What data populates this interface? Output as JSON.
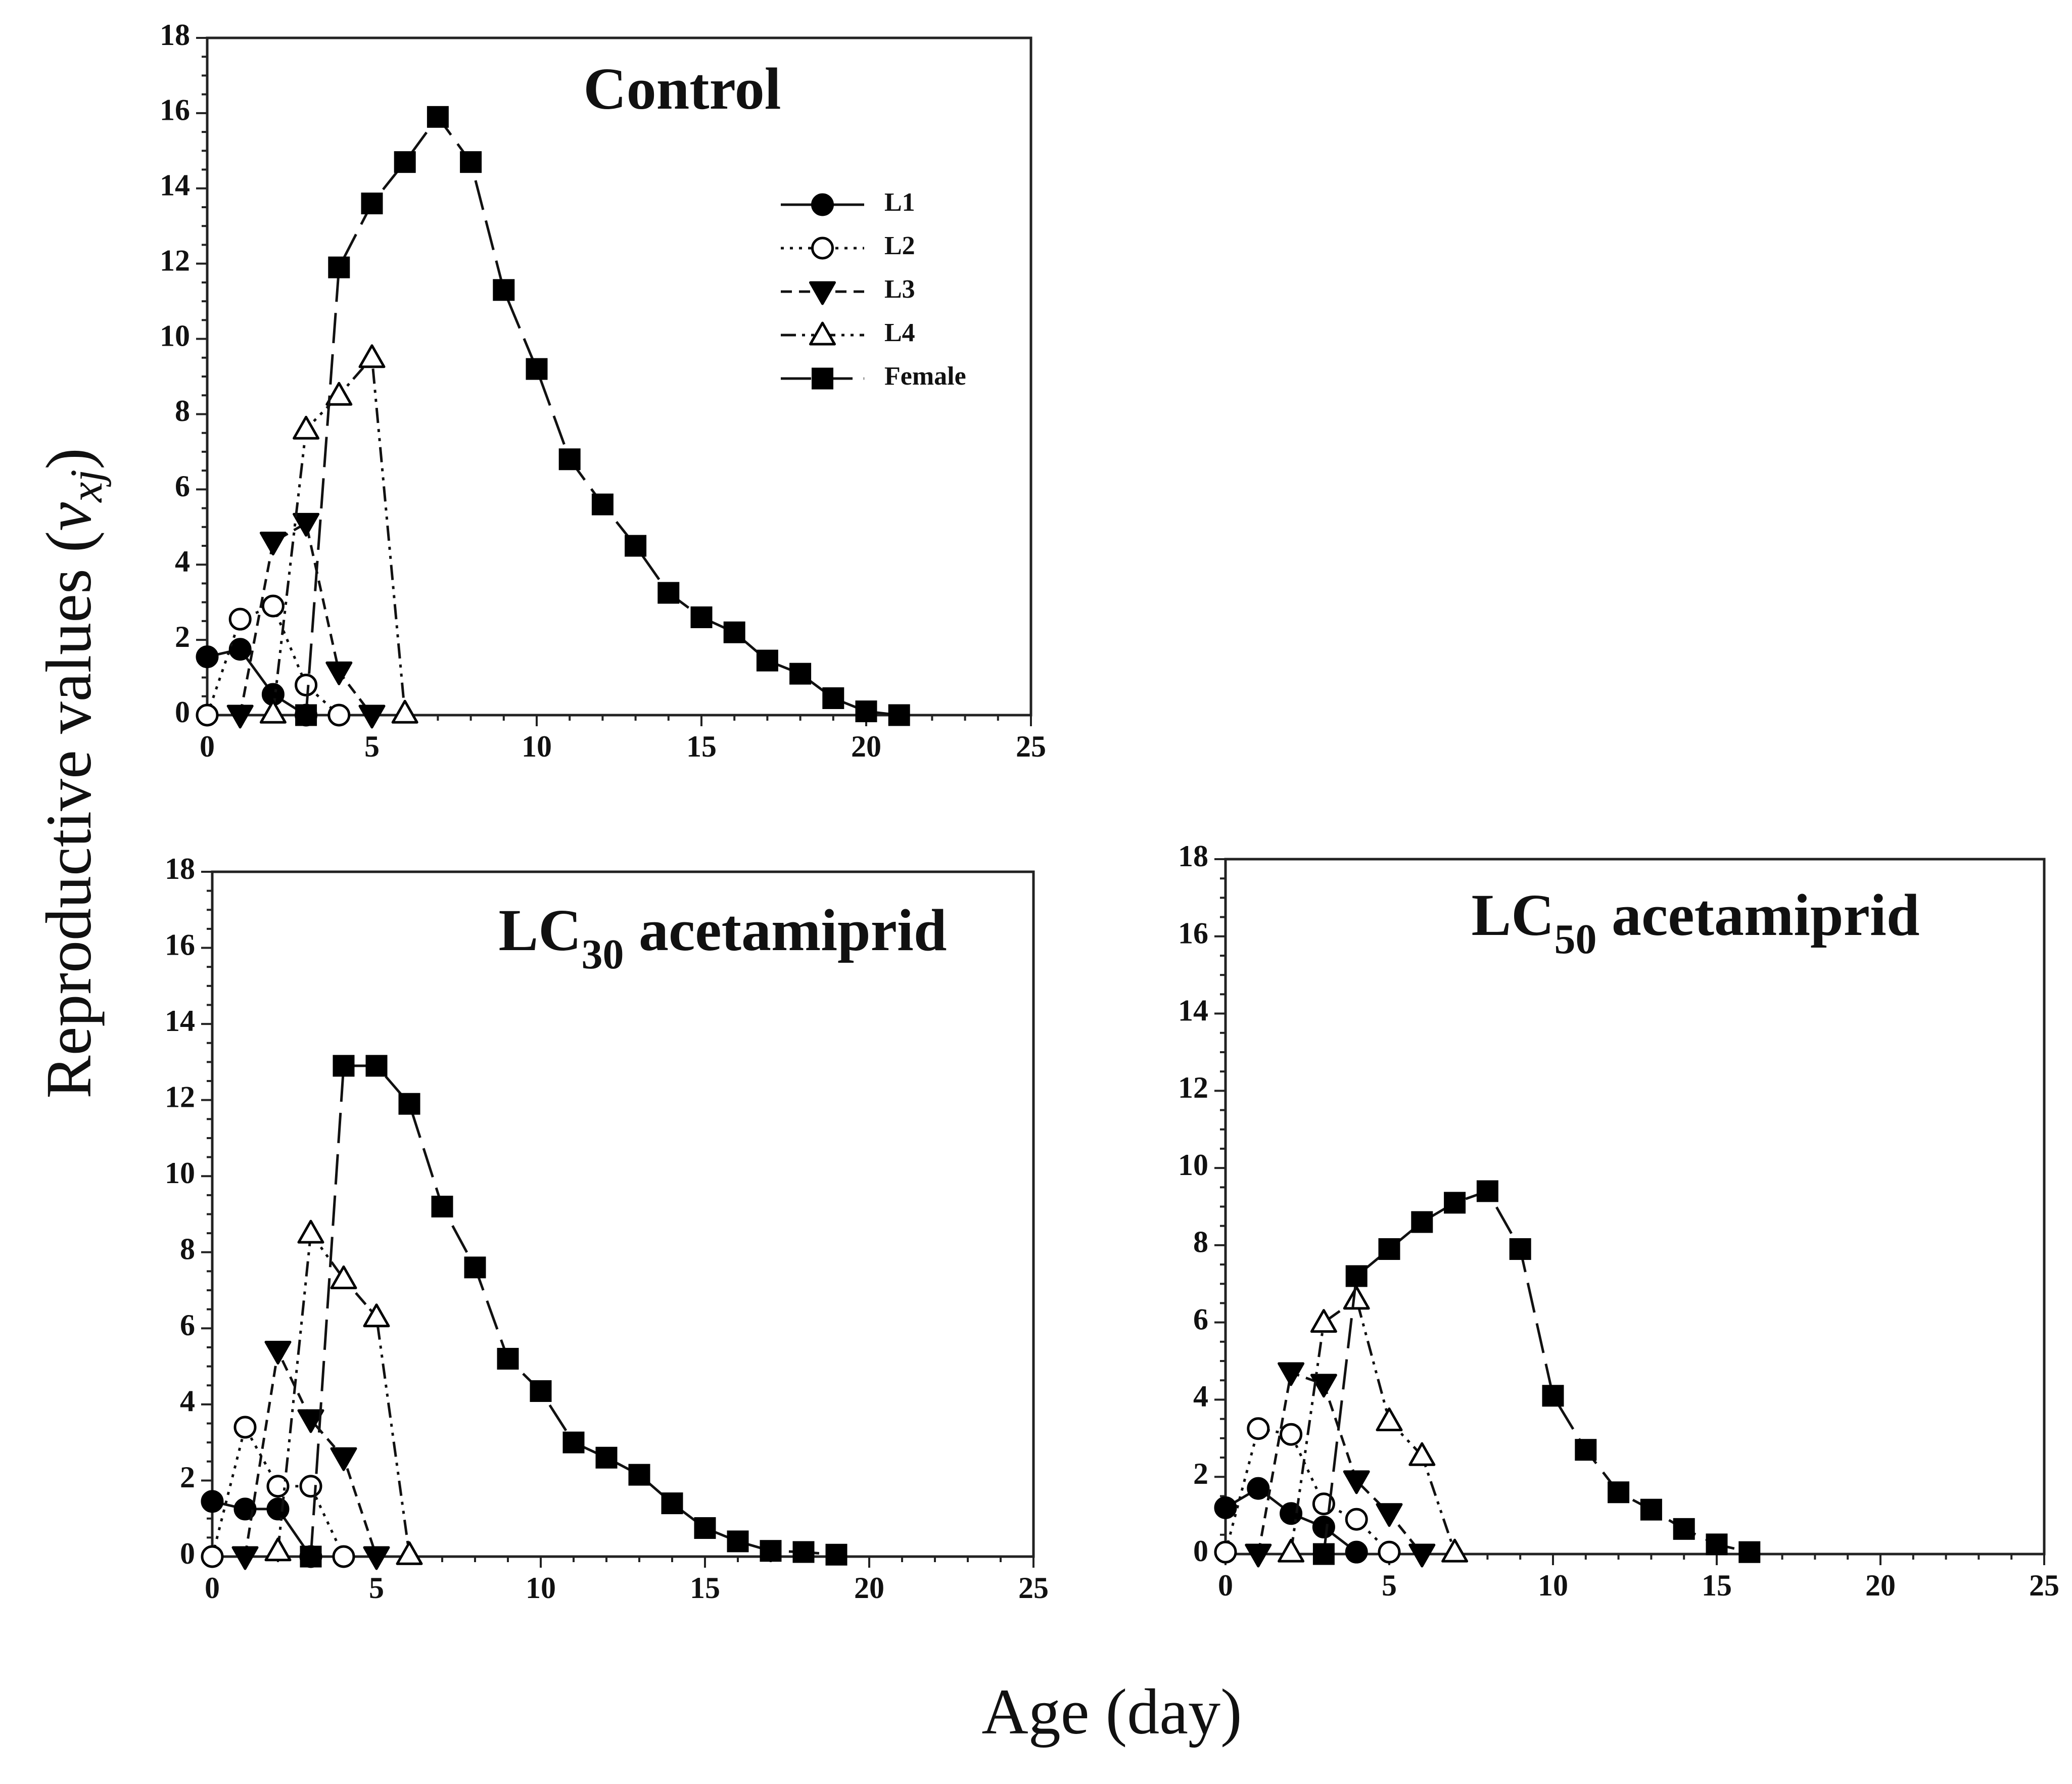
{
  "figure": {
    "ylabel_prefix": "Reproductive values (",
    "ylabel_var": "v",
    "ylabel_sub": "xj",
    "ylabel_suffix": ")",
    "xlabel": "Age (day)"
  },
  "chart_data": [
    {
      "type": "line",
      "title": "Control",
      "title_main": "Control",
      "title_sub": "",
      "title_rest": "",
      "xlabel": "Age (day)",
      "ylabel": "Reproductive values (vxj)",
      "xlim": [
        0,
        25
      ],
      "ylim": [
        0,
        18
      ],
      "xticks": [
        0,
        5,
        10,
        15,
        20,
        25
      ],
      "yticks": [
        0,
        2,
        4,
        6,
        8,
        10,
        12,
        14,
        16,
        18
      ],
      "legend": {
        "placement": "top-right",
        "entries": [
          "L1",
          "L2",
          "L3",
          "L4",
          "Female"
        ]
      },
      "series": [
        {
          "name": "L1",
          "x": [
            0,
            1,
            2,
            3
          ],
          "values": [
            1.55,
            1.75,
            0.55,
            0.0
          ]
        },
        {
          "name": "L2",
          "x": [
            0,
            1,
            2,
            3,
            4
          ],
          "values": [
            0.0,
            2.55,
            2.9,
            0.8,
            0.0
          ]
        },
        {
          "name": "L3",
          "x": [
            1,
            2,
            3,
            4,
            5
          ],
          "values": [
            0.0,
            4.6,
            5.1,
            1.15,
            0.0
          ]
        },
        {
          "name": "L4",
          "x": [
            2,
            3,
            4,
            5,
            6
          ],
          "values": [
            0.05,
            7.6,
            8.5,
            9.5,
            0.05
          ]
        },
        {
          "name": "Female",
          "x": [
            3,
            4,
            5,
            6,
            7,
            8,
            9,
            10,
            11,
            12,
            13,
            14,
            15,
            16,
            17,
            18,
            19,
            20,
            21
          ],
          "values": [
            0.0,
            11.9,
            13.6,
            14.7,
            15.9,
            14.7,
            11.3,
            9.2,
            6.8,
            5.6,
            4.5,
            3.25,
            2.6,
            2.2,
            1.45,
            1.1,
            0.45,
            0.1,
            0.0
          ]
        }
      ]
    },
    {
      "type": "line",
      "title": "LC30 acetamiprid",
      "title_main": "LC",
      "title_sub": "30",
      "title_rest": " acetamiprid",
      "xlabel": "Age (day)",
      "ylabel": "Reproductive values (vxj)",
      "xlim": [
        0,
        25
      ],
      "ylim": [
        0,
        18
      ],
      "xticks": [
        0,
        5,
        10,
        15,
        20,
        25
      ],
      "yticks": [
        0,
        2,
        4,
        6,
        8,
        10,
        12,
        14,
        16,
        18
      ],
      "series": [
        {
          "name": "L1",
          "x": [
            0,
            1,
            2,
            3
          ],
          "values": [
            1.45,
            1.25,
            1.25,
            0.0
          ]
        },
        {
          "name": "L2",
          "x": [
            0,
            1,
            2,
            3,
            4
          ],
          "values": [
            0.0,
            3.4,
            1.85,
            1.85,
            0.0
          ]
        },
        {
          "name": "L3",
          "x": [
            1,
            2,
            3,
            4,
            5
          ],
          "values": [
            0.0,
            5.4,
            3.6,
            2.6,
            0.0
          ]
        },
        {
          "name": "L4",
          "x": [
            2,
            3,
            4,
            5,
            6
          ],
          "values": [
            0.15,
            8.5,
            7.3,
            6.3,
            0.05
          ]
        },
        {
          "name": "Female",
          "x": [
            3,
            4,
            5,
            6,
            7,
            8,
            9,
            10,
            11,
            12,
            13,
            14,
            15,
            16,
            17,
            18,
            19
          ],
          "values": [
            0.0,
            12.9,
            12.9,
            11.9,
            9.2,
            7.6,
            5.2,
            4.35,
            3.0,
            2.6,
            2.15,
            1.4,
            0.75,
            0.4,
            0.15,
            0.12,
            0.05
          ]
        }
      ]
    },
    {
      "type": "line",
      "title": "LC50 acetamiprid",
      "title_main": "LC",
      "title_sub": "50",
      "title_rest": " acetamiprid",
      "xlabel": "Age (day)",
      "ylabel": "Reproductive values (vxj)",
      "xlim": [
        0,
        25
      ],
      "ylim": [
        0,
        18
      ],
      "xticks": [
        0,
        5,
        10,
        15,
        20,
        25
      ],
      "yticks": [
        0,
        2,
        4,
        6,
        8,
        10,
        12,
        14,
        16,
        18
      ],
      "series": [
        {
          "name": "L1",
          "x": [
            0,
            1,
            2,
            3,
            4
          ],
          "values": [
            1.2,
            1.7,
            1.05,
            0.7,
            0.05
          ]
        },
        {
          "name": "L2",
          "x": [
            0,
            1,
            2,
            3,
            4,
            5
          ],
          "values": [
            0.05,
            3.25,
            3.1,
            1.3,
            0.9,
            0.05
          ]
        },
        {
          "name": "L3",
          "x": [
            1,
            2,
            3,
            4,
            5,
            6
          ],
          "values": [
            0.0,
            4.7,
            4.4,
            1.9,
            1.05,
            0.0
          ]
        },
        {
          "name": "L4",
          "x": [
            2,
            3,
            4,
            5,
            6,
            7
          ],
          "values": [
            0.05,
            6.0,
            6.6,
            3.45,
            2.55,
            0.05
          ]
        },
        {
          "name": "Female",
          "x": [
            3,
            4,
            5,
            6,
            7,
            8,
            9,
            10,
            11,
            12,
            13,
            14,
            15,
            16
          ],
          "values": [
            0.0,
            7.2,
            7.9,
            8.6,
            9.1,
            9.4,
            7.9,
            4.1,
            2.7,
            1.6,
            1.15,
            0.65,
            0.25,
            0.05
          ]
        }
      ]
    }
  ]
}
